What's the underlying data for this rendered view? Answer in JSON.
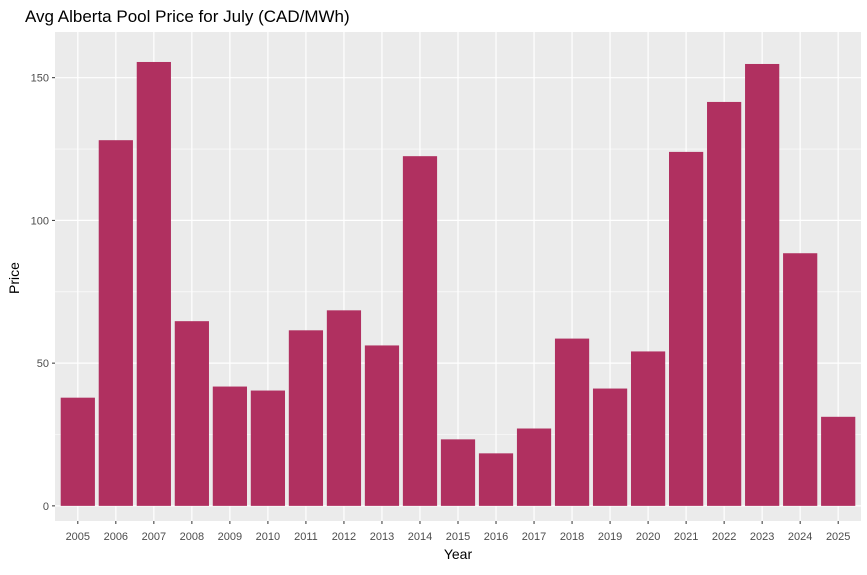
{
  "chart_data": {
    "type": "bar",
    "title": "Avg Alberta Pool Price for July (CAD/MWh)",
    "xlabel": "Year",
    "ylabel": "Price",
    "categories": [
      "2005",
      "2006",
      "2007",
      "2008",
      "2009",
      "2010",
      "2011",
      "2012",
      "2013",
      "2014",
      "2015",
      "2016",
      "2017",
      "2018",
      "2019",
      "2020",
      "2021",
      "2022",
      "2023",
      "2024",
      "2025"
    ],
    "values": [
      37.9,
      128.1,
      155.5,
      64.7,
      41.8,
      40.4,
      61.5,
      68.5,
      56.2,
      122.5,
      23.3,
      18.4,
      27.1,
      58.6,
      41.1,
      54.1,
      124.0,
      141.5,
      154.8,
      88.5,
      31.2
    ],
    "ylim": [
      -5.3,
      166.0
    ],
    "yticks": [
      0,
      50,
      100,
      150
    ],
    "ytick_labels": [
      "0",
      "50",
      "100",
      "150"
    ],
    "bar_color": "#B03060",
    "panel_color": "#EBEBEB",
    "grid_color": "#FFFFFF",
    "grid": true
  }
}
